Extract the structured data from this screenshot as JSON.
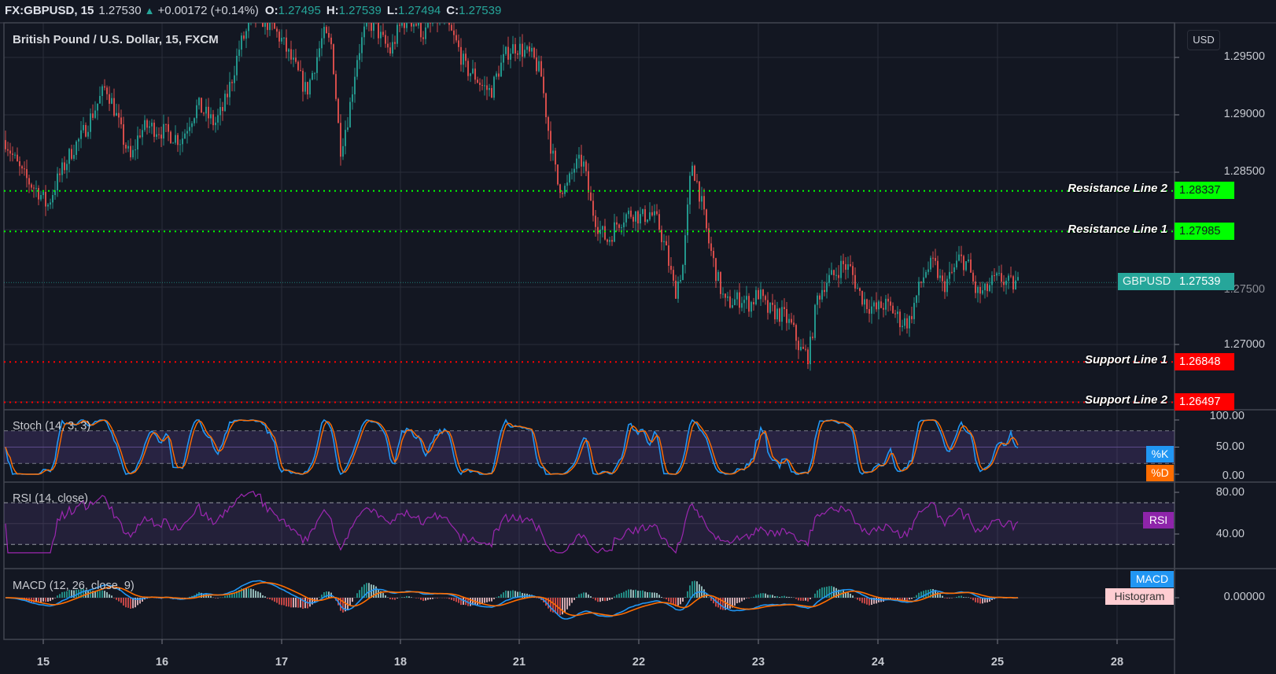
{
  "header": {
    "symbol": "FX:GBPUSD, 15",
    "last": "1.27530",
    "change": "+0.00172 (+0.14%)",
    "open_label": "O:",
    "open": "1.27495",
    "high_label": "H:",
    "high": "1.27539",
    "low_label": "L:",
    "low": "1.27494",
    "close_label": "C:",
    "close": "1.27539",
    "direction_icon": "triangle-up-icon"
  },
  "main_pane": {
    "title": "British Pound / U.S. Dollar, 15, FXCM",
    "currency_button": "USD",
    "price_ticks": [
      "1.29500",
      "1.29000",
      "1.28500",
      "1.27500",
      "1.27000"
    ],
    "current_price": {
      "label": "GBPUSD",
      "value": "1.27539",
      "color": "#26a69a"
    },
    "lines": [
      {
        "label": "Resistance Line 2",
        "value": "1.28337",
        "color": "#00ff00"
      },
      {
        "label": "Resistance Line 1",
        "value": "1.27985",
        "color": "#00ff00"
      },
      {
        "label": "Support Line 1",
        "value": "1.26848",
        "color": "#ff0000"
      },
      {
        "label": "Support Line 2",
        "value": "1.26497",
        "color": "#ff0000"
      }
    ]
  },
  "stoch_pane": {
    "title": "Stoch (14, 3, 3)",
    "ticks": [
      "100.00",
      "50.00",
      "0.00"
    ],
    "k_label": "%K",
    "d_label": "%D",
    "k_color": "#2196f3",
    "d_color": "#ff6d00"
  },
  "rsi_pane": {
    "title": "RSI (14, close)",
    "ticks": [
      "80.00",
      "40.00"
    ],
    "label": "RSI",
    "color": "#9c27b0"
  },
  "macd_pane": {
    "title": "MACD (12, 26, close, 9)",
    "ticks": [
      "0.00000"
    ],
    "macd_label": "MACD",
    "histogram_label": "Histogram",
    "macd_color": "#2196f3",
    "signal_color": "#ff6d00"
  },
  "time_axis": {
    "labels": [
      "15",
      "16",
      "17",
      "18",
      "21",
      "22",
      "23",
      "24",
      "25",
      "28"
    ]
  },
  "colors": {
    "background": "#131722",
    "grid": "#2a2e39",
    "up": "#26a69a",
    "down": "#ef5350"
  },
  "chart_data": {
    "type": "candlestick",
    "title": "British Pound / U.S. Dollar, 15, FXCM",
    "xlabel": "",
    "ylabel": "USD",
    "ylim": [
      1.2625,
      1.298
    ],
    "categories": [
      "15",
      "16",
      "17",
      "18",
      "21",
      "22",
      "23",
      "24",
      "25",
      "28"
    ],
    "approx_close_path": [
      1.2878,
      1.2862,
      1.2848,
      1.284,
      1.2833,
      1.282,
      1.284,
      1.2855,
      1.287,
      1.288,
      1.2895,
      1.291,
      1.2925,
      1.2905,
      1.288,
      1.286,
      1.2885,
      1.289,
      1.2888,
      1.2885,
      1.2882,
      1.2878,
      1.2895,
      1.2908,
      1.29,
      1.2892,
      1.2905,
      1.293,
      1.296,
      1.2975,
      1.2985,
      1.2982,
      1.2975,
      1.2965,
      1.295,
      1.2935,
      1.292,
      1.2945,
      1.297,
      1.296,
      1.287,
      1.29,
      1.295,
      1.2975,
      1.298,
      1.2965,
      1.2955,
      1.2975,
      1.2985,
      1.298,
      1.297,
      1.298,
      1.2985,
      1.2975,
      1.296,
      1.294,
      1.2935,
      1.2925,
      1.292,
      1.294,
      1.2955,
      1.296,
      1.2955,
      1.295,
      1.2935,
      1.288,
      1.284,
      1.2835,
      1.2855,
      1.286,
      1.282,
      1.28,
      1.279,
      1.2805,
      1.2812,
      1.2815,
      1.281,
      1.2815,
      1.2805,
      1.278,
      1.2745,
      1.277,
      1.286,
      1.283,
      1.279,
      1.276,
      1.2735,
      1.2738,
      1.274,
      1.2735,
      1.2745,
      1.273,
      1.2728,
      1.2725,
      1.2715,
      1.2695,
      1.269,
      1.274,
      1.2755,
      1.276,
      1.277,
      1.2765,
      1.2745,
      1.2735,
      1.273,
      1.2735,
      1.273,
      1.272,
      1.272,
      1.2745,
      1.2765,
      1.277,
      1.275,
      1.276,
      1.2775,
      1.277,
      1.2745,
      1.2745,
      1.2755,
      1.2757,
      1.2752,
      1.2753
    ],
    "horizontal_lines": [
      {
        "name": "Resistance Line 2",
        "value": 1.28337
      },
      {
        "name": "Resistance Line 1",
        "value": 1.27985
      },
      {
        "name": "Support Line 1",
        "value": 1.26848
      },
      {
        "name": "Support Line 2",
        "value": 1.26497
      }
    ],
    "last_price": 1.27539,
    "indicators": [
      {
        "name": "Stoch (14, 3, 3)",
        "series": [
          "%K",
          "%D"
        ],
        "range": [
          0,
          100
        ],
        "bands": [
          20,
          80
        ]
      },
      {
        "name": "RSI (14, close)",
        "range": [
          20,
          85
        ],
        "bands": [
          30,
          70
        ]
      },
      {
        "name": "MACD (12, 26, close, 9)",
        "series": [
          "MACD",
          "Signal",
          "Histogram"
        ],
        "zero_line": 0.0
      }
    ]
  }
}
